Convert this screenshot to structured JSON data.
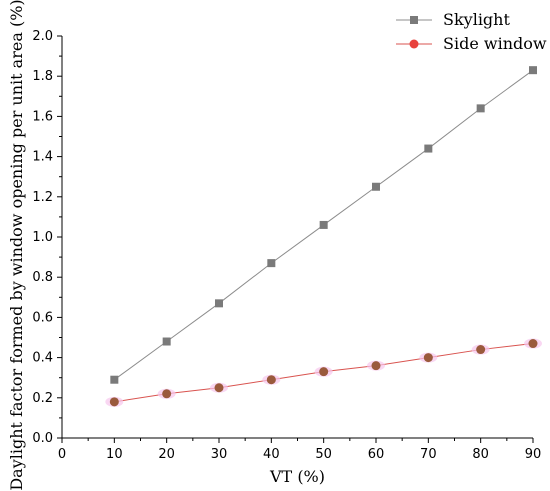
{
  "chart_data": {
    "type": "line",
    "xlabel": "VT (%)",
    "ylabel": "Daylight factor  formed by window opening per unit area (%)",
    "xlim": [
      0,
      90
    ],
    "ylim": [
      0,
      2.0
    ],
    "x_ticks": [
      "0",
      "10",
      "20",
      "30",
      "40",
      "50",
      "60",
      "70",
      "80",
      "90"
    ],
    "y_ticks": [
      "0.0",
      "0.2",
      "0.4",
      "0.6",
      "0.8",
      "1.0",
      "1.2",
      "1.4",
      "1.6",
      "1.8",
      "2.0"
    ],
    "legend_position": "top-right",
    "x": [
      10,
      20,
      30,
      40,
      50,
      60,
      70,
      80,
      90
    ],
    "series": [
      {
        "name": "Skylight",
        "marker": "square",
        "color": "#7a7a7a",
        "line_color": "#8c8c8c",
        "values": [
          0.29,
          0.48,
          0.67,
          0.87,
          1.06,
          1.25,
          1.44,
          1.64,
          1.83
        ]
      },
      {
        "name": "Side window",
        "marker": "circle",
        "color": "#9a5a3c",
        "line_color": "#d9534f",
        "legend_color": "#e8413c",
        "values": [
          0.18,
          0.22,
          0.25,
          0.29,
          0.33,
          0.36,
          0.4,
          0.44,
          0.47
        ]
      }
    ]
  }
}
